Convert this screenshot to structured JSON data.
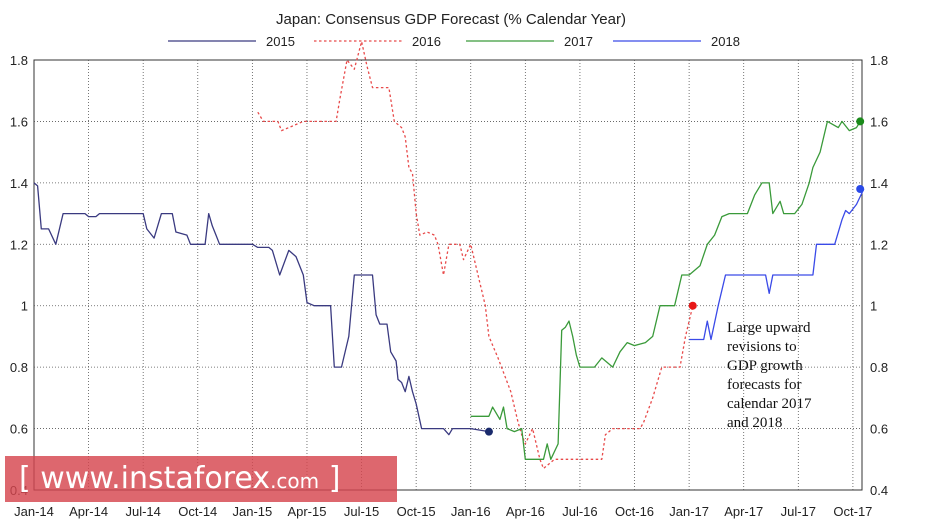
{
  "chart_data": {
    "type": "line",
    "title": "Japan: Consensus GDP Forecast (% Calendar Year)",
    "xlabel": "",
    "ylabel": "",
    "ylim": [
      0.4,
      1.8
    ],
    "yticks": [
      0.4,
      0.6,
      0.8,
      1.0,
      1.2,
      1.4,
      1.6,
      1.8
    ],
    "ytick_labels": [
      "0.4",
      "0.6",
      "0.8",
      "1",
      "1.2",
      "1.4",
      "1.6",
      "1.8"
    ],
    "xlim": [
      0,
      45.5
    ],
    "xtick_labels": [
      "Jan-14",
      "Apr-14",
      "Jul-14",
      "Oct-14",
      "Jan-15",
      "Apr-15",
      "Jul-15",
      "Oct-15",
      "Jan-16",
      "Apr-16",
      "Jul-16",
      "Oct-16",
      "Jan-17",
      "Apr-17",
      "Jul-17",
      "Oct-17"
    ],
    "xtick_positions": [
      0,
      3,
      6,
      9,
      12,
      15,
      18,
      21,
      24,
      27,
      30,
      33,
      36,
      39,
      42,
      45
    ],
    "grid": true,
    "legend_position": "top",
    "series": [
      {
        "name": "2015",
        "color": "#3a3a80",
        "style": "solid",
        "points": [
          [
            0,
            1.4
          ],
          [
            0.2,
            1.39
          ],
          [
            0.4,
            1.25
          ],
          [
            0.8,
            1.25
          ],
          [
            1.2,
            1.2
          ],
          [
            1.6,
            1.3
          ],
          [
            2.8,
            1.3
          ],
          [
            3.0,
            1.29
          ],
          [
            3.4,
            1.29
          ],
          [
            3.6,
            1.3
          ],
          [
            6.0,
            1.3
          ],
          [
            6.2,
            1.25
          ],
          [
            6.6,
            1.22
          ],
          [
            7.0,
            1.3
          ],
          [
            7.6,
            1.3
          ],
          [
            7.8,
            1.24
          ],
          [
            8.4,
            1.23
          ],
          [
            8.6,
            1.2
          ],
          [
            9.4,
            1.2
          ],
          [
            9.6,
            1.3
          ],
          [
            9.8,
            1.26
          ],
          [
            10.0,
            1.23
          ],
          [
            10.2,
            1.2
          ],
          [
            12.0,
            1.2
          ],
          [
            12.3,
            1.19
          ],
          [
            12.9,
            1.19
          ],
          [
            13.1,
            1.18
          ],
          [
            13.5,
            1.1
          ],
          [
            14.0,
            1.18
          ],
          [
            14.4,
            1.16
          ],
          [
            14.8,
            1.1
          ],
          [
            15.0,
            1.01
          ],
          [
            15.4,
            1.0
          ],
          [
            16.3,
            1.0
          ],
          [
            16.5,
            0.8
          ],
          [
            16.9,
            0.8
          ],
          [
            17.3,
            0.9
          ],
          [
            17.6,
            1.1
          ],
          [
            18.6,
            1.1
          ],
          [
            18.8,
            0.97
          ],
          [
            19.0,
            0.94
          ],
          [
            19.4,
            0.94
          ],
          [
            19.6,
            0.85
          ],
          [
            19.9,
            0.82
          ],
          [
            20.0,
            0.76
          ],
          [
            20.2,
            0.75
          ],
          [
            20.4,
            0.72
          ],
          [
            20.6,
            0.77
          ],
          [
            20.8,
            0.72
          ],
          [
            21.0,
            0.68
          ],
          [
            21.3,
            0.6
          ],
          [
            22.5,
            0.6
          ],
          [
            22.8,
            0.58
          ],
          [
            23.0,
            0.6
          ],
          [
            24.0,
            0.6
          ],
          [
            25.0,
            0.59
          ]
        ]
      },
      {
        "name": "2016",
        "color": "#e84a4a",
        "style": "dashed",
        "points": [
          [
            12.3,
            1.63
          ],
          [
            12.6,
            1.6
          ],
          [
            13.4,
            1.6
          ],
          [
            13.6,
            1.57
          ],
          [
            14.0,
            1.58
          ],
          [
            14.8,
            1.6
          ],
          [
            16.6,
            1.6
          ],
          [
            16.8,
            1.67
          ],
          [
            17.2,
            1.8
          ],
          [
            17.6,
            1.77
          ],
          [
            18.0,
            1.86
          ],
          [
            18.3,
            1.78
          ],
          [
            18.6,
            1.71
          ],
          [
            19.5,
            1.71
          ],
          [
            19.8,
            1.6
          ],
          [
            20.2,
            1.58
          ],
          [
            20.4,
            1.55
          ],
          [
            20.6,
            1.45
          ],
          [
            20.8,
            1.43
          ],
          [
            21.0,
            1.3
          ],
          [
            21.2,
            1.23
          ],
          [
            21.6,
            1.24
          ],
          [
            22.0,
            1.23
          ],
          [
            22.2,
            1.2
          ],
          [
            22.5,
            1.1
          ],
          [
            22.8,
            1.2
          ],
          [
            23.4,
            1.2
          ],
          [
            23.6,
            1.15
          ],
          [
            24.0,
            1.2
          ],
          [
            24.4,
            1.1
          ],
          [
            24.6,
            1.05
          ],
          [
            24.8,
            1.0
          ],
          [
            25.0,
            0.9
          ],
          [
            25.5,
            0.83
          ],
          [
            26.2,
            0.72
          ],
          [
            26.6,
            0.62
          ],
          [
            26.8,
            0.58
          ],
          [
            27.0,
            0.55
          ],
          [
            27.4,
            0.6
          ],
          [
            27.8,
            0.5
          ],
          [
            28.0,
            0.47
          ],
          [
            28.2,
            0.48
          ],
          [
            28.6,
            0.5
          ],
          [
            30.0,
            0.5
          ],
          [
            31.2,
            0.5
          ],
          [
            31.4,
            0.58
          ],
          [
            31.8,
            0.6
          ],
          [
            33.3,
            0.6
          ],
          [
            33.5,
            0.62
          ],
          [
            34.0,
            0.7
          ],
          [
            34.5,
            0.8
          ],
          [
            35.5,
            0.8
          ],
          [
            35.8,
            0.9
          ],
          [
            36.2,
            1.0
          ]
        ]
      },
      {
        "name": "2017",
        "color": "#3a9a3a",
        "style": "solid",
        "points": [
          [
            24.0,
            0.64
          ],
          [
            25.0,
            0.64
          ],
          [
            25.2,
            0.67
          ],
          [
            25.6,
            0.63
          ],
          [
            25.8,
            0.67
          ],
          [
            26.0,
            0.6
          ],
          [
            26.4,
            0.59
          ],
          [
            26.8,
            0.6
          ],
          [
            27.0,
            0.5
          ],
          [
            27.8,
            0.5
          ],
          [
            28.0,
            0.5
          ],
          [
            28.2,
            0.55
          ],
          [
            28.4,
            0.5
          ],
          [
            28.8,
            0.55
          ],
          [
            29.0,
            0.92
          ],
          [
            29.2,
            0.93
          ],
          [
            29.4,
            0.95
          ],
          [
            29.6,
            0.9
          ],
          [
            29.8,
            0.84
          ],
          [
            30.0,
            0.8
          ],
          [
            30.8,
            0.8
          ],
          [
            31.2,
            0.83
          ],
          [
            31.8,
            0.8
          ],
          [
            32.2,
            0.85
          ],
          [
            32.6,
            0.88
          ],
          [
            33.0,
            0.87
          ],
          [
            33.6,
            0.88
          ],
          [
            34.0,
            0.9
          ],
          [
            34.4,
            1.0
          ],
          [
            35.2,
            1.0
          ],
          [
            35.6,
            1.1
          ],
          [
            36.0,
            1.1
          ],
          [
            36.6,
            1.13
          ],
          [
            37.0,
            1.2
          ],
          [
            37.4,
            1.23
          ],
          [
            37.8,
            1.29
          ],
          [
            38.2,
            1.3
          ],
          [
            39.2,
            1.3
          ],
          [
            39.6,
            1.36
          ],
          [
            40.0,
            1.4
          ],
          [
            40.4,
            1.4
          ],
          [
            40.6,
            1.3
          ],
          [
            41.0,
            1.34
          ],
          [
            41.2,
            1.3
          ],
          [
            41.8,
            1.3
          ],
          [
            42.2,
            1.33
          ],
          [
            42.6,
            1.4
          ],
          [
            42.8,
            1.45
          ],
          [
            43.2,
            1.5
          ],
          [
            43.6,
            1.6
          ],
          [
            44.2,
            1.58
          ],
          [
            44.4,
            1.6
          ],
          [
            44.8,
            1.57
          ],
          [
            45.2,
            1.58
          ],
          [
            45.4,
            1.6
          ]
        ]
      },
      {
        "name": "2018",
        "color": "#3a4ae8",
        "style": "solid",
        "points": [
          [
            36.0,
            0.89
          ],
          [
            36.8,
            0.89
          ],
          [
            37.0,
            0.95
          ],
          [
            37.2,
            0.89
          ],
          [
            37.6,
            1.0
          ],
          [
            38.0,
            1.1
          ],
          [
            40.2,
            1.1
          ],
          [
            40.4,
            1.04
          ],
          [
            40.6,
            1.1
          ],
          [
            42.8,
            1.1
          ],
          [
            43.0,
            1.2
          ],
          [
            44.0,
            1.2
          ],
          [
            44.4,
            1.28
          ],
          [
            44.6,
            1.31
          ],
          [
            44.8,
            1.3
          ],
          [
            45.2,
            1.33
          ],
          [
            45.6,
            1.38
          ]
        ]
      }
    ],
    "markers": [
      {
        "series": "2015",
        "x": 25.0,
        "y": 0.59,
        "color": "#1a2a6c"
      },
      {
        "series": "2016",
        "x": 36.2,
        "y": 1.0,
        "color": "#e81818"
      },
      {
        "series": "2017",
        "x": 45.4,
        "y": 1.6,
        "color": "#1a8a1a"
      },
      {
        "series": "2018",
        "x": 45.4,
        "y": 1.38,
        "color": "#2a4ae8"
      }
    ],
    "annotation": [
      "Large upward",
      "revisions to",
      "GDP growth",
      "forecasts for",
      "calendar 2017",
      "and 2018"
    ]
  },
  "watermark": {
    "open_bracket": "[",
    "site": "www.instaforex",
    "suffix": ".com",
    "close_bracket": "]"
  }
}
